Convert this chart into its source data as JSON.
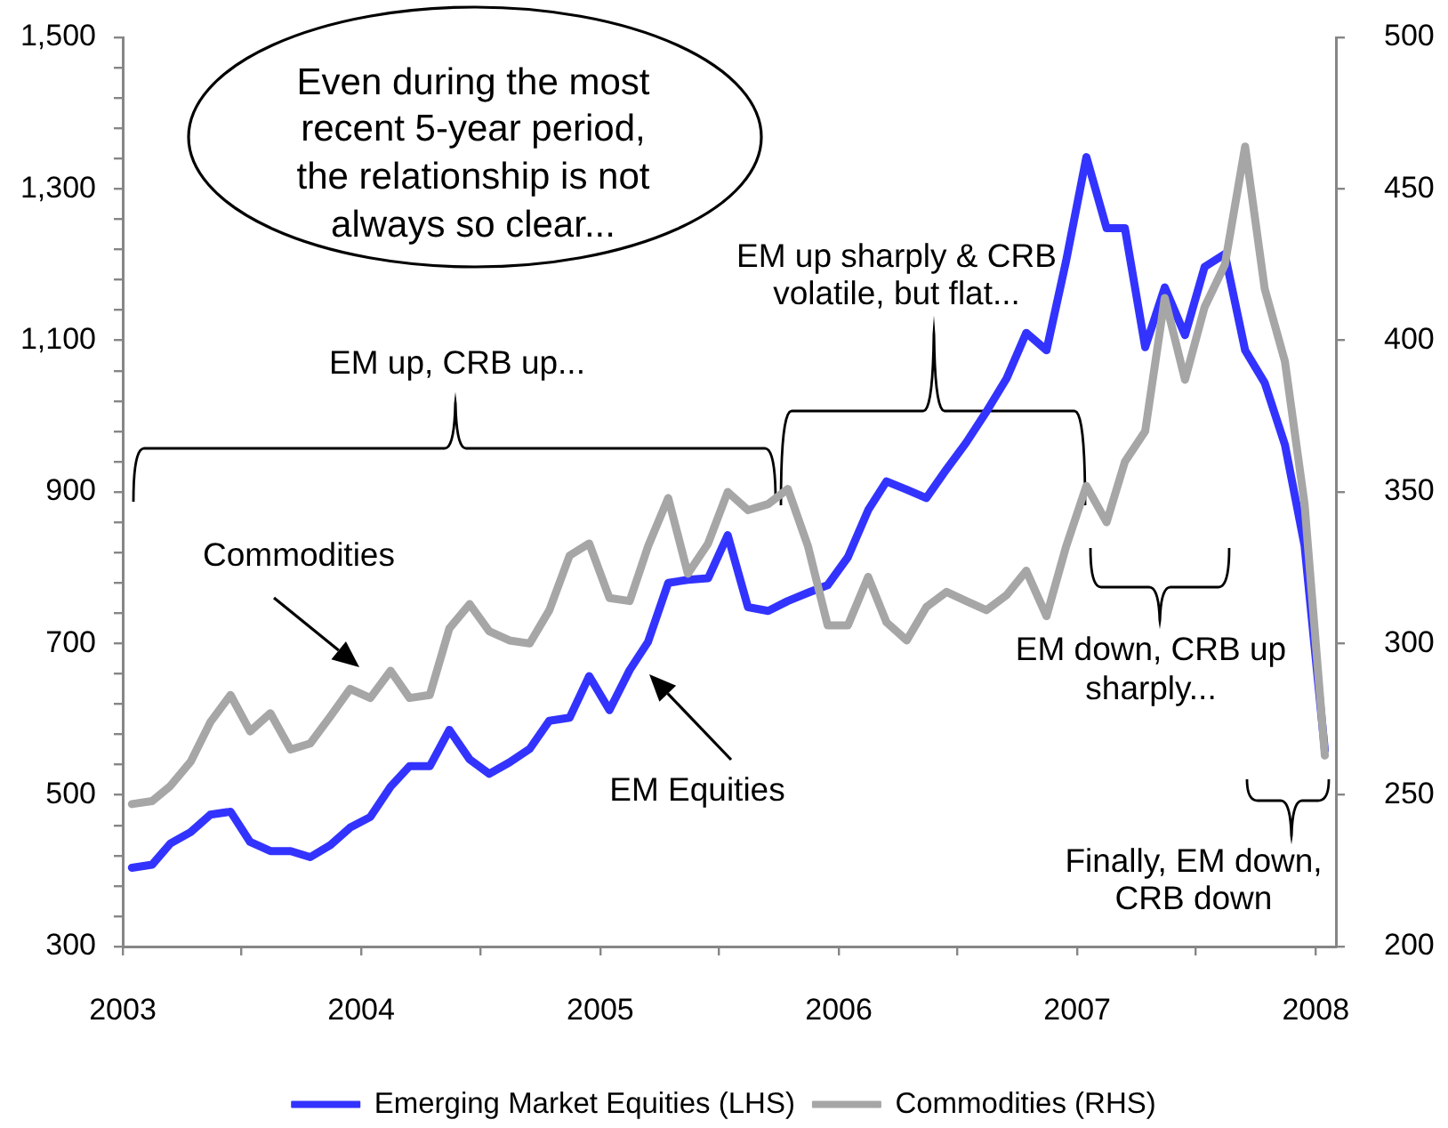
{
  "chart_data": {
    "type": "line",
    "x": [
      "2003-01-15",
      "2003-02-15",
      "2003-03-15",
      "2003-04-15",
      "2003-05-15",
      "2003-06-15",
      "2003-07-15",
      "2003-08-15",
      "2003-09-15",
      "2003-10-15",
      "2003-11-15",
      "2003-12-15",
      "2004-01-15",
      "2004-02-15",
      "2004-03-15",
      "2004-04-15",
      "2004-05-15",
      "2004-06-15",
      "2004-07-15",
      "2004-08-15",
      "2004-09-15",
      "2004-10-15",
      "2004-11-15",
      "2004-12-15",
      "2005-01-15",
      "2005-02-15",
      "2005-03-15",
      "2005-04-15",
      "2005-05-15",
      "2005-06-15",
      "2005-07-15",
      "2005-08-15",
      "2005-09-15",
      "2005-10-15",
      "2005-11-15",
      "2005-12-15",
      "2006-01-15",
      "2006-02-15",
      "2006-03-15",
      "2006-04-15",
      "2006-05-15",
      "2006-06-15",
      "2006-07-15",
      "2006-08-15",
      "2006-09-15",
      "2006-10-15",
      "2006-11-15",
      "2006-12-15",
      "2007-01-15",
      "2007-02-15",
      "2007-03-15",
      "2007-04-15",
      "2007-05-15",
      "2007-06-15",
      "2007-07-15",
      "2007-08-15",
      "2007-09-15",
      "2007-10-15",
      "2007-11-15",
      "2007-12-15",
      "2008-01-15"
    ],
    "series": [
      {
        "name": "Emerging Market Equities (LHS)",
        "color": "#3333ff",
        "values": [
          404,
          408,
          436,
          451,
          474,
          478,
          438,
          426,
          426,
          418,
          434,
          457,
          471,
          511,
          538,
          538,
          586,
          547,
          528,
          543,
          561,
          598,
          602,
          657,
          612,
          665,
          702,
          780,
          784,
          786,
          843,
          748,
          743,
          756,
          767,
          777,
          814,
          876,
          914,
          903,
          892,
          930,
          965,
          1006,
          1050,
          1110,
          1087,
          1205,
          1342,
          1248,
          1248,
          1091,
          1170,
          1107,
          1197,
          1214,
          1087,
          1044,
          962,
          829,
          559
        ]
      },
      {
        "name": "Commodities (RHS)",
        "color": "#a6a6a6",
        "axis": "y2",
        "values": [
          247,
          248,
          253,
          261,
          274,
          283,
          271,
          277,
          265,
          267,
          276,
          285,
          282,
          291,
          282,
          283,
          305,
          313,
          304,
          301,
          300,
          311,
          329,
          333,
          315,
          314,
          332,
          348,
          323,
          333,
          350,
          344,
          346,
          351,
          332,
          306,
          306,
          322,
          307,
          301,
          312,
          317,
          314,
          311,
          316,
          324,
          309,
          332,
          352,
          340,
          360,
          370,
          414,
          387,
          411,
          425,
          464,
          417,
          393,
          346,
          263
        ]
      }
    ],
    "xlim": [
      "2003",
      "2008-02"
    ],
    "xticks": [
      "2003",
      {
        "value": "2003-07",
        "label": null
      },
      "2004",
      {
        "value": "2004-07",
        "label": null
      },
      "2005",
      {
        "value": "2005-07",
        "label": null
      },
      "2006",
      {
        "value": "2006-07",
        "label": null
      },
      "2007",
      {
        "value": "2007-07",
        "label": null
      },
      "2008"
    ],
    "ylim": [
      300,
      1500
    ],
    "yticks": [
      300,
      {
        "value": 340,
        "label": null
      },
      {
        "value": 380,
        "label": null
      },
      {
        "value": 420,
        "label": null
      },
      {
        "value": 460,
        "label": null
      },
      500,
      {
        "value": 540,
        "label": null
      },
      {
        "value": 580,
        "label": null
      },
      {
        "value": 620,
        "label": null
      },
      {
        "value": 660,
        "label": null
      },
      700,
      {
        "value": 740,
        "label": null
      },
      {
        "value": 780,
        "label": null
      },
      {
        "value": 820,
        "label": null
      },
      {
        "value": 860,
        "label": null
      },
      900,
      {
        "value": 940,
        "label": null
      },
      {
        "value": 980,
        "label": null
      },
      {
        "value": 1020,
        "label": null
      },
      {
        "value": 1060,
        "label": null
      },
      {
        "value": 1100,
        "label": "1,100"
      },
      {
        "value": 1140,
        "label": null
      },
      {
        "value": 1180,
        "label": null
      },
      {
        "value": 1220,
        "label": null
      },
      {
        "value": 1260,
        "label": null
      },
      {
        "value": 1300,
        "label": "1,300"
      },
      {
        "value": 1340,
        "label": null
      },
      {
        "value": 1380,
        "label": null
      },
      {
        "value": 1420,
        "label": null
      },
      {
        "value": 1460,
        "label": null
      },
      {
        "value": 1500,
        "label": "1,500"
      }
    ],
    "y2lim": [
      200,
      500
    ],
    "y2ticks": [
      200,
      250,
      300,
      350,
      400,
      450,
      500
    ],
    "legend": "bottom",
    "annotations": [
      "Even during the most recent 5-year period, the relationship is not always so clear...",
      "EM up sharply & CRB volatile, but flat...",
      "EM up, CRB up...",
      "Commodities",
      "EM down, CRB up sharply...",
      "EM Equities",
      "Finally, EM down, CRB down"
    ]
  }
}
